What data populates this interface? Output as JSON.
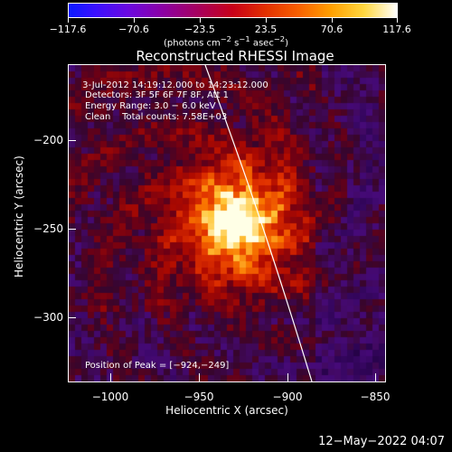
{
  "colorbar": {
    "ticks": [
      "−117.6",
      "−70.6",
      "−23.5",
      "23.5",
      "70.6",
      "117.6"
    ],
    "units_html": "(photons cm<sup>−2</sup> s<sup>−1</sup> asec<sup>−2</sup>)"
  },
  "title": "Reconstructed RHESSI Image",
  "annotations": {
    "time": " 3-Jul-2012 14:19:12.000 to 14:23:12.000",
    "detectors": "Detectors: 3F 5F 6F 7F 8F, Att 1",
    "energy": "Energy Range: 3.0 − 6.0 keV",
    "clean": "Clean    Total counts: 7.58E+03",
    "peak": "Position of Peak = [−924,−249]"
  },
  "axes": {
    "xlabel": "Heliocentric X (arcsec)",
    "ylabel": "Heliocentric Y (arcsec)",
    "xticks": [
      "−1000",
      "−950",
      "−900",
      "−850"
    ],
    "yticks": [
      "−200",
      "−250",
      "−300"
    ]
  },
  "footer": {
    "timestamp": "12−May−2022 04:07"
  }
}
